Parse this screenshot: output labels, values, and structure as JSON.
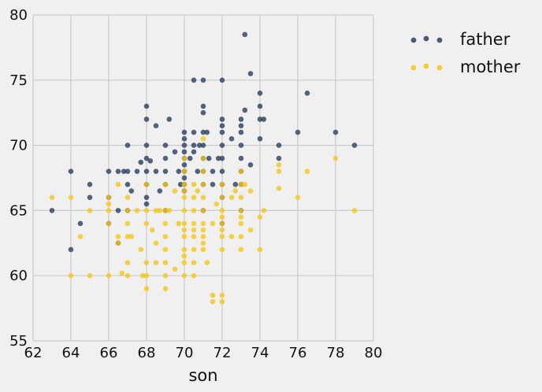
{
  "chart_data": {
    "type": "scatter",
    "xlabel": "son",
    "ylabel": "",
    "xlim": [
      62,
      80
    ],
    "ylim": [
      55,
      80
    ],
    "x_ticks": [
      62,
      64,
      66,
      68,
      70,
      72,
      74,
      76,
      78,
      80
    ],
    "y_ticks": [
      55,
      60,
      65,
      70,
      75,
      80
    ],
    "grid": true,
    "legend": "right",
    "series": [
      {
        "name": "father",
        "color": "#2a3f5f",
        "points": [
          [
            63,
            65
          ],
          [
            64,
            68
          ],
          [
            64,
            62
          ],
          [
            64.5,
            64
          ],
          [
            65,
            67
          ],
          [
            65,
            66
          ],
          [
            66,
            68
          ],
          [
            66,
            66
          ],
          [
            66,
            64
          ],
          [
            66.5,
            68
          ],
          [
            66.5,
            65
          ],
          [
            66.5,
            62.5
          ],
          [
            66.8,
            68
          ],
          [
            67,
            70
          ],
          [
            67,
            68
          ],
          [
            67,
            67
          ],
          [
            67,
            65
          ],
          [
            67.2,
            66.5
          ],
          [
            67.5,
            68
          ],
          [
            67.7,
            68.7
          ],
          [
            68,
            73
          ],
          [
            68,
            72
          ],
          [
            68,
            70
          ],
          [
            68,
            69
          ],
          [
            68,
            68
          ],
          [
            68,
            67
          ],
          [
            68,
            66
          ],
          [
            68,
            65.5
          ],
          [
            68.2,
            68.8
          ],
          [
            68.5,
            71.5
          ],
          [
            68.5,
            68
          ],
          [
            68.7,
            66.5
          ],
          [
            69,
            70
          ],
          [
            69,
            69
          ],
          [
            69,
            68
          ],
          [
            69,
            67
          ],
          [
            69,
            65
          ],
          [
            69.2,
            72
          ],
          [
            69.5,
            69.5
          ],
          [
            69.7,
            68
          ],
          [
            69.8,
            67
          ],
          [
            70,
            71
          ],
          [
            70,
            70.5
          ],
          [
            70,
            70
          ],
          [
            70,
            69.5
          ],
          [
            70,
            69
          ],
          [
            70,
            68.5
          ],
          [
            70,
            68
          ],
          [
            70,
            67.5
          ],
          [
            70,
            67
          ],
          [
            70,
            66.5
          ],
          [
            70.3,
            69
          ],
          [
            70.5,
            75
          ],
          [
            70.5,
            71
          ],
          [
            70.5,
            70
          ],
          [
            70.5,
            69.5
          ],
          [
            70.7,
            68
          ],
          [
            70.8,
            70
          ],
          [
            71,
            75
          ],
          [
            71,
            73
          ],
          [
            71,
            72.5
          ],
          [
            71,
            71
          ],
          [
            71,
            70
          ],
          [
            71,
            69
          ],
          [
            71,
            68
          ],
          [
            71,
            67
          ],
          [
            71,
            65
          ],
          [
            71.2,
            71
          ],
          [
            71.3,
            69
          ],
          [
            71.5,
            68
          ],
          [
            71.5,
            67
          ],
          [
            71.8,
            69
          ],
          [
            72,
            75
          ],
          [
            72,
            72
          ],
          [
            72,
            71.5
          ],
          [
            72,
            71
          ],
          [
            72,
            70
          ],
          [
            72,
            69
          ],
          [
            72,
            68
          ],
          [
            72,
            67
          ],
          [
            72,
            66
          ],
          [
            72,
            64
          ],
          [
            72.5,
            70.5
          ],
          [
            72.7,
            67
          ],
          [
            73,
            72
          ],
          [
            73,
            71.5
          ],
          [
            73,
            71
          ],
          [
            73,
            70
          ],
          [
            73,
            69
          ],
          [
            73,
            68
          ],
          [
            73,
            67
          ],
          [
            73,
            65
          ],
          [
            73.2,
            78.5
          ],
          [
            73.2,
            72.7
          ],
          [
            73.5,
            75.5
          ],
          [
            73.5,
            68.5
          ],
          [
            74,
            74
          ],
          [
            74,
            73
          ],
          [
            74,
            72
          ],
          [
            74,
            70.5
          ],
          [
            74.2,
            72
          ],
          [
            75,
            70
          ],
          [
            75,
            69
          ],
          [
            76,
            71
          ],
          [
            76.5,
            74
          ],
          [
            78,
            71
          ],
          [
            79,
            70
          ]
        ]
      },
      {
        "name": "mother",
        "color": "#f5c518",
        "points": [
          [
            63,
            66
          ],
          [
            64,
            66
          ],
          [
            64,
            60
          ],
          [
            64.5,
            63
          ],
          [
            65,
            65
          ],
          [
            65,
            60
          ],
          [
            66,
            66
          ],
          [
            66,
            65.5
          ],
          [
            66,
            65
          ],
          [
            66,
            64
          ],
          [
            66,
            60
          ],
          [
            66.5,
            63
          ],
          [
            66.5,
            62.5
          ],
          [
            66.5,
            67
          ],
          [
            66.7,
            60.2
          ],
          [
            67,
            66
          ],
          [
            67,
            65
          ],
          [
            67,
            64
          ],
          [
            67,
            63
          ],
          [
            67,
            61
          ],
          [
            67,
            60
          ],
          [
            67.2,
            63
          ],
          [
            67.5,
            65
          ],
          [
            67.7,
            62
          ],
          [
            67.8,
            60
          ],
          [
            68,
            67
          ],
          [
            68,
            65
          ],
          [
            68,
            64
          ],
          [
            68,
            61
          ],
          [
            68,
            60
          ],
          [
            68,
            59
          ],
          [
            68.3,
            63.5
          ],
          [
            68.5,
            65
          ],
          [
            68.5,
            62.5
          ],
          [
            68.5,
            61
          ],
          [
            68.7,
            65
          ],
          [
            69,
            67
          ],
          [
            69,
            65
          ],
          [
            69,
            64
          ],
          [
            69,
            63
          ],
          [
            69,
            62
          ],
          [
            69,
            61
          ],
          [
            69,
            60
          ],
          [
            69,
            59
          ],
          [
            69.2,
            65
          ],
          [
            69.5,
            66.5
          ],
          [
            69.5,
            60.5
          ],
          [
            69.7,
            64
          ],
          [
            70,
            69
          ],
          [
            70,
            68
          ],
          [
            70,
            67
          ],
          [
            70,
            66.5
          ],
          [
            70,
            66
          ],
          [
            70,
            65
          ],
          [
            70,
            64
          ],
          [
            70,
            63.5
          ],
          [
            70,
            63
          ],
          [
            70,
            62
          ],
          [
            70,
            61.5
          ],
          [
            70,
            61
          ],
          [
            70,
            60
          ],
          [
            70.5,
            67
          ],
          [
            70.5,
            66
          ],
          [
            70.5,
            65
          ],
          [
            70.5,
            64
          ],
          [
            70.5,
            63.5
          ],
          [
            70.5,
            63
          ],
          [
            70.5,
            62
          ],
          [
            70.5,
            61
          ],
          [
            70.5,
            60
          ],
          [
            70.7,
            66.5
          ],
          [
            71,
            70.5
          ],
          [
            71,
            69
          ],
          [
            71,
            68
          ],
          [
            71,
            67
          ],
          [
            71,
            66
          ],
          [
            71,
            65
          ],
          [
            71,
            64
          ],
          [
            71,
            63.5
          ],
          [
            71,
            63
          ],
          [
            71,
            62.5
          ],
          [
            71,
            62
          ],
          [
            71.2,
            61
          ],
          [
            71.5,
            64
          ],
          [
            71.5,
            58.5
          ],
          [
            71.5,
            58
          ],
          [
            71.7,
            65.5
          ],
          [
            72,
            67
          ],
          [
            72,
            66
          ],
          [
            72,
            65
          ],
          [
            72,
            64.5
          ],
          [
            72,
            64
          ],
          [
            72,
            63.5
          ],
          [
            72,
            63
          ],
          [
            72,
            62
          ],
          [
            72,
            58.5
          ],
          [
            72,
            58
          ],
          [
            72.5,
            66
          ],
          [
            72.5,
            63
          ],
          [
            72.7,
            66.5
          ],
          [
            73,
            68
          ],
          [
            73,
            67
          ],
          [
            73,
            66
          ],
          [
            73,
            65
          ],
          [
            73,
            64.5
          ],
          [
            73,
            64
          ],
          [
            73,
            63
          ],
          [
            73,
            62
          ],
          [
            73.2,
            67
          ],
          [
            73.5,
            66.5
          ],
          [
            73.5,
            63.5
          ],
          [
            74,
            64.5
          ],
          [
            74,
            62
          ],
          [
            74.2,
            65
          ],
          [
            75,
            68.5
          ],
          [
            75,
            68
          ],
          [
            75,
            66.7
          ],
          [
            76,
            66
          ],
          [
            76.5,
            68
          ],
          [
            78,
            69
          ],
          [
            79,
            65
          ]
        ]
      }
    ]
  }
}
